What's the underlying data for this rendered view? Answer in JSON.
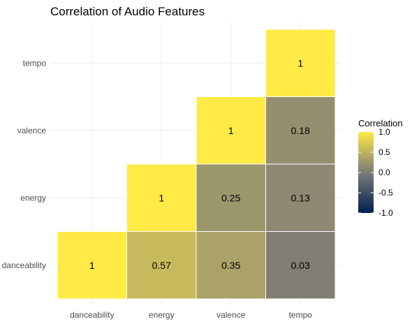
{
  "chart_data": {
    "type": "heatmap",
    "title": "Correlation of Audio Features",
    "xlabel": "",
    "ylabel": "",
    "x_categories": [
      "danceability",
      "energy",
      "valence",
      "tempo"
    ],
    "y_categories": [
      "danceability",
      "energy",
      "valence",
      "tempo"
    ],
    "cells": [
      {
        "x": "danceability",
        "y": "danceability",
        "value": 1,
        "label": "1"
      },
      {
        "x": "energy",
        "y": "danceability",
        "value": 0.57,
        "label": "0.57"
      },
      {
        "x": "valence",
        "y": "danceability",
        "value": 0.35,
        "label": "0.35"
      },
      {
        "x": "tempo",
        "y": "danceability",
        "value": 0.03,
        "label": "0.03"
      },
      {
        "x": "energy",
        "y": "energy",
        "value": 1,
        "label": "1"
      },
      {
        "x": "valence",
        "y": "energy",
        "value": 0.25,
        "label": "0.25"
      },
      {
        "x": "tempo",
        "y": "energy",
        "value": 0.13,
        "label": "0.13"
      },
      {
        "x": "valence",
        "y": "valence",
        "value": 1,
        "label": "1"
      },
      {
        "x": "tempo",
        "y": "valence",
        "value": 0.18,
        "label": "0.18"
      },
      {
        "x": "tempo",
        "y": "tempo",
        "value": 1,
        "label": "1"
      }
    ],
    "legend": {
      "title": "Correlation",
      "placement": "right",
      "range": [
        -1,
        1
      ],
      "ticks": [
        1.0,
        0.5,
        0.0,
        -0.5,
        -1.0
      ],
      "tick_labels": [
        "1.0",
        "0.5",
        "0.0",
        "-0.5",
        "-1.0"
      ],
      "colors": {
        "low": "#00204d",
        "mid": "#7c7b78",
        "high": "#ffea46"
      }
    },
    "grid": true
  }
}
